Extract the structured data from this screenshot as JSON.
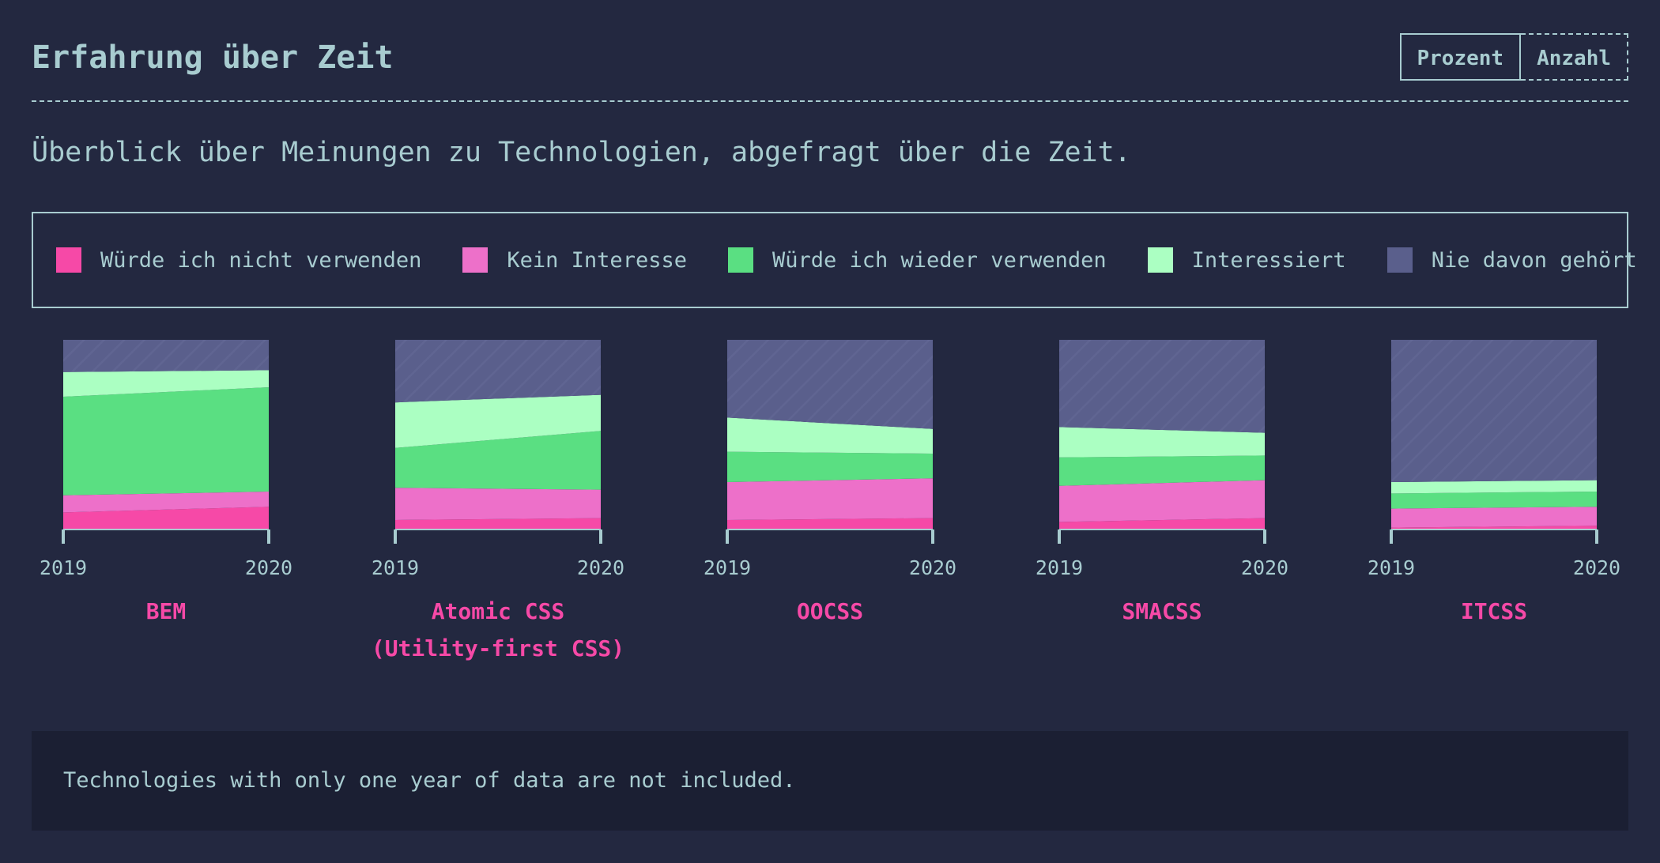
{
  "header": {
    "title": "Erfahrung über Zeit",
    "toggle": {
      "percent_label": "Prozent",
      "count_label": "Anzahl",
      "selected": "Prozent"
    }
  },
  "description": "Überblick über Meinungen zu Technologien, abgefragt über die Zeit.",
  "note": "Technologies with only one year of data are not included.",
  "legend": [
    {
      "label": "Würde ich nicht verwenden",
      "color": "#f649a7"
    },
    {
      "label": "Kein Interesse",
      "color": "#ed70c9"
    },
    {
      "label": "Würde ich wieder verwenden",
      "color": "#5adf82"
    },
    {
      "label": "Interessiert",
      "color": "#abffc2"
    },
    {
      "label": "Nie davon gehört",
      "color": "#5a5f8c"
    }
  ],
  "chart_data": {
    "type": "area",
    "mode": "stacked-percent",
    "x": [
      "2019",
      "2020"
    ],
    "charts": [
      {
        "name": "BEM",
        "series": [
          {
            "name": "Würde ich nicht verwenden",
            "values": [
              9,
              12
            ]
          },
          {
            "name": "Kein Interesse",
            "values": [
              9,
              8
            ]
          },
          {
            "name": "Würde ich wieder verwenden",
            "values": [
              52,
              55
            ]
          },
          {
            "name": "Interessiert",
            "values": [
              13,
              9
            ]
          },
          {
            "name": "Nie davon gehört",
            "values": [
              17,
              16
            ]
          }
        ]
      },
      {
        "name": "Atomic CSS (Utility-first CSS)",
        "series": [
          {
            "name": "Würde ich nicht verwenden",
            "values": [
              5,
              6
            ]
          },
          {
            "name": "Kein Interesse",
            "values": [
              17,
              15
            ]
          },
          {
            "name": "Würde ich wieder verwenden",
            "values": [
              21,
              31
            ]
          },
          {
            "name": "Interessiert",
            "values": [
              24,
              19
            ]
          },
          {
            "name": "Nie davon gehört",
            "values": [
              33,
              29
            ]
          }
        ]
      },
      {
        "name": "OOCSS",
        "series": [
          {
            "name": "Würde ich nicht verwenden",
            "values": [
              5,
              6
            ]
          },
          {
            "name": "Kein Interesse",
            "values": [
              20,
              21
            ]
          },
          {
            "name": "Würde ich wieder verwenden",
            "values": [
              16,
              13
            ]
          },
          {
            "name": "Interessiert",
            "values": [
              18,
              13
            ]
          },
          {
            "name": "Nie davon gehört",
            "values": [
              41,
              47
            ]
          }
        ]
      },
      {
        "name": "SMACSS",
        "series": [
          {
            "name": "Würde ich nicht verwenden",
            "values": [
              4,
              6
            ]
          },
          {
            "name": "Kein Interesse",
            "values": [
              19,
              20
            ]
          },
          {
            "name": "Würde ich wieder verwenden",
            "values": [
              15,
              13
            ]
          },
          {
            "name": "Interessiert",
            "values": [
              16,
              12
            ]
          },
          {
            "name": "Nie davon gehört",
            "values": [
              46,
              49
            ]
          }
        ]
      },
      {
        "name": "ITCSS",
        "series": [
          {
            "name": "Würde ich nicht verwenden",
            "values": [
              1,
              2
            ]
          },
          {
            "name": "Kein Interesse",
            "values": [
              10,
              10
            ]
          },
          {
            "name": "Würde ich wieder verwenden",
            "values": [
              8,
              8
            ]
          },
          {
            "name": "Interessiert",
            "values": [
              6,
              6
            ]
          },
          {
            "name": "Nie davon gehört",
            "values": [
              75,
              74
            ]
          }
        ]
      }
    ]
  }
}
